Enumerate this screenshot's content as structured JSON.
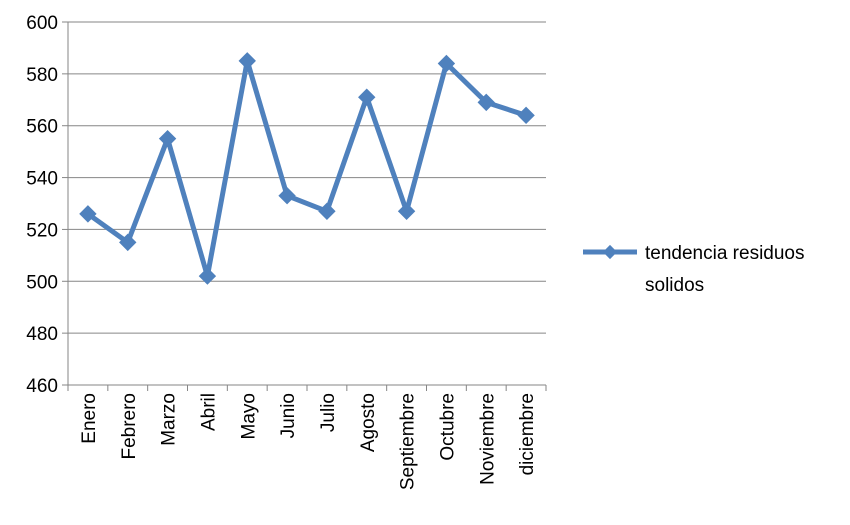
{
  "chart_data": {
    "type": "line",
    "categories": [
      "Enero",
      "Febrero",
      "Marzo",
      "Abril",
      "Mayo",
      "Junio",
      "Julio",
      "Agosto",
      "Septiembre",
      "Octubre",
      "Noviembre",
      "diciembre"
    ],
    "series": [
      {
        "name": "tendencia residuos solidos",
        "values": [
          526,
          515,
          555,
          502,
          585,
          533,
          527,
          571,
          527,
          584,
          569,
          564
        ],
        "color": "#4F81BD",
        "marker": "diamond"
      }
    ],
    "ylim": [
      460,
      600
    ],
    "yticks": [
      460,
      480,
      500,
      520,
      540,
      560,
      580,
      600
    ],
    "grid": true,
    "legend_position": "right",
    "xlabel": "",
    "ylabel": "",
    "title": ""
  },
  "legend": {
    "line1": "tendencia residuos",
    "line2": "solidos"
  }
}
